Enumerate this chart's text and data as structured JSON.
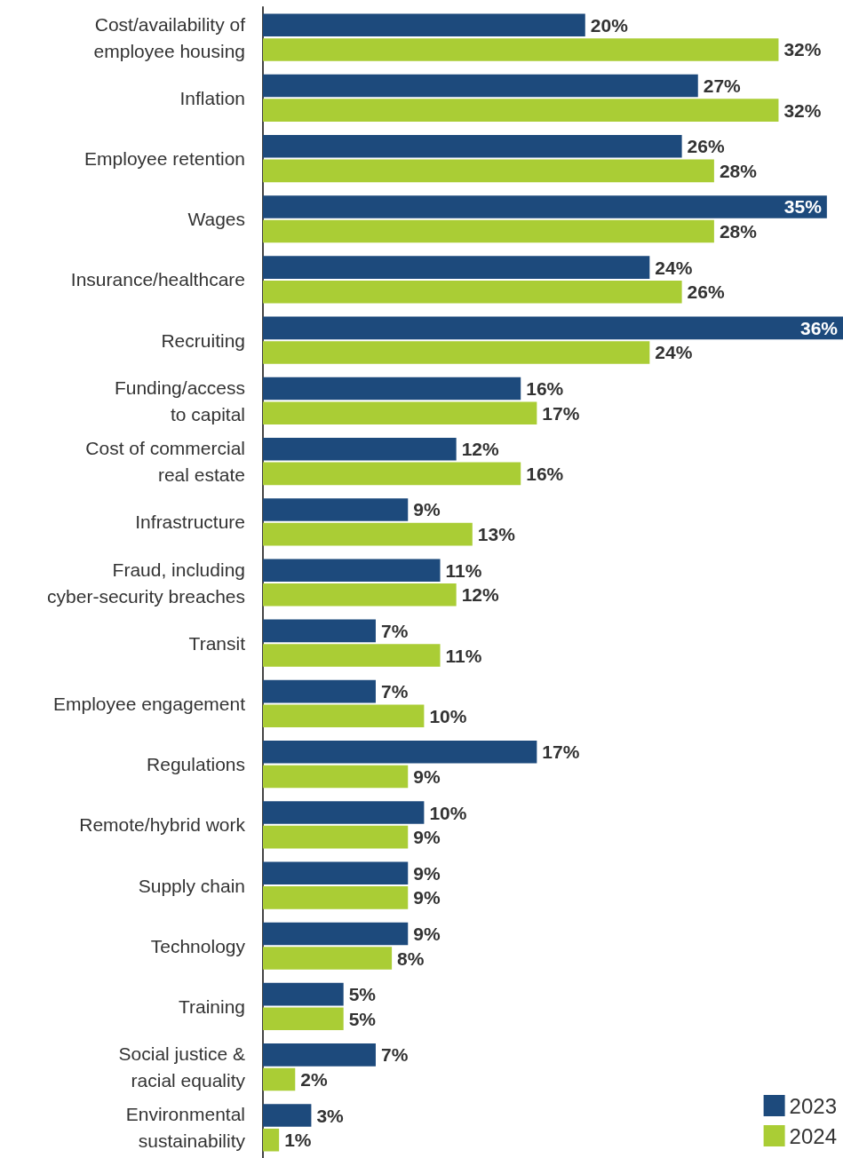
{
  "chart_data": {
    "type": "bar",
    "orientation": "horizontal",
    "legend": "bottom right",
    "categories": [
      "Cost/availability of\nemployee housing",
      "Inflation",
      "Employee retention",
      "Wages",
      "Insurance/healthcare",
      "Recruiting",
      "Funding/access\nto capital",
      "Cost of commercial\nreal estate",
      "Infrastructure",
      "Fraud, including\ncyber-security breaches",
      "Transit",
      "Employee engagement",
      "Regulations",
      "Remote/hybrid work",
      "Supply chain",
      "Technology",
      "Training",
      "Social justice &\nracial equality",
      "Environmental\nsustainability"
    ],
    "series": [
      {
        "name": "2023",
        "color": "#1d4a7c",
        "values": [
          20,
          27,
          26,
          35,
          24,
          36,
          16,
          12,
          9,
          11,
          7,
          7,
          17,
          10,
          9,
          9,
          5,
          7,
          3
        ],
        "value_labels": [
          "20%",
          "27%",
          "26%",
          "35%",
          "24%",
          "36%",
          "16%",
          "12%",
          "9%",
          "11%",
          "7%",
          "7%",
          "17%",
          "10%",
          "9%",
          "9%",
          "5%",
          "7%",
          "3%"
        ]
      },
      {
        "name": "2024",
        "color": "#aacd35",
        "values": [
          32,
          32,
          28,
          28,
          26,
          24,
          17,
          16,
          13,
          12,
          11,
          10,
          9,
          9,
          9,
          8,
          5,
          2,
          1
        ],
        "value_labels": [
          "32%",
          "32%",
          "28%",
          "28%",
          "26%",
          "24%",
          "17%",
          "16%",
          "13%",
          "12%",
          "11%",
          "10%",
          "9%",
          "9%",
          "9%",
          "8%",
          "5%",
          "2%",
          "1%"
        ]
      }
    ]
  }
}
